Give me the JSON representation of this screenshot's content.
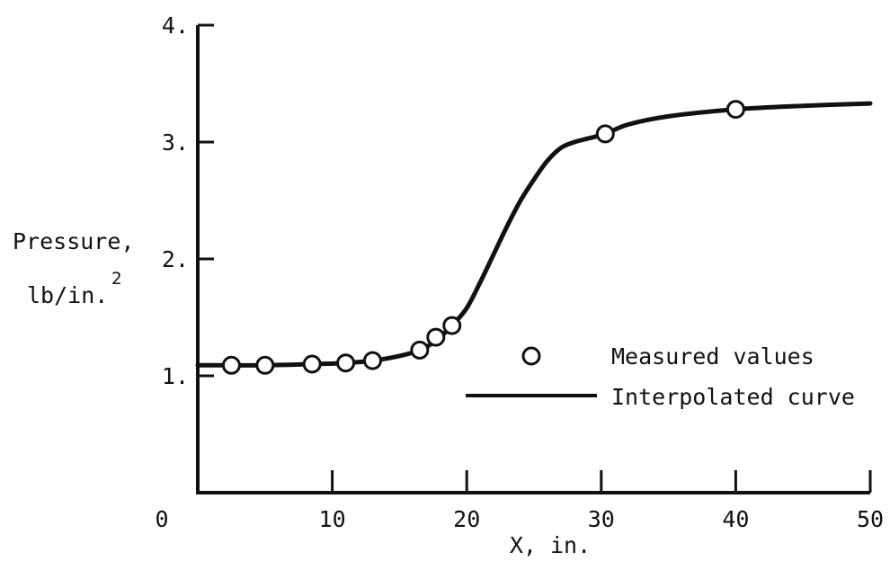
{
  "chart_data": {
    "type": "line",
    "title": "",
    "xlabel": "X, in.",
    "ylabel": [
      "Pressure,",
      "lb/in."
    ],
    "ylabel_superscript": "2",
    "xlim": [
      0,
      50
    ],
    "ylim": [
      0,
      4
    ],
    "grid": false,
    "x_ticks": [
      0,
      10,
      20,
      30,
      40,
      50
    ],
    "x_tick_labels": [
      "0",
      "10",
      "20",
      "30",
      "40",
      "50"
    ],
    "y_ticks": [
      1,
      2,
      3,
      4
    ],
    "y_tick_labels": [
      "1.",
      "2.",
      "3.",
      "4."
    ],
    "legend_position": "right",
    "series": [
      {
        "name": "Measured values",
        "style": "open-circle",
        "x": [
          2.5,
          5,
          8.5,
          11,
          13,
          16.5,
          17.7,
          18.9,
          30.3,
          40
        ],
        "y": [
          1.09,
          1.09,
          1.1,
          1.11,
          1.13,
          1.22,
          1.33,
          1.43,
          3.07,
          3.28
        ]
      },
      {
        "name": "Interpolated curve",
        "style": "line",
        "x": [
          0,
          2.5,
          5,
          8.5,
          11,
          13,
          15,
          16.5,
          17.7,
          18.9,
          20,
          21,
          22,
          23,
          24,
          25,
          26,
          27,
          28,
          29,
          30.3,
          32,
          35,
          40,
          45,
          50
        ],
        "y": [
          1.09,
          1.09,
          1.09,
          1.1,
          1.11,
          1.13,
          1.17,
          1.22,
          1.3,
          1.43,
          1.58,
          1.8,
          2.04,
          2.28,
          2.5,
          2.68,
          2.84,
          2.95,
          3.0,
          3.03,
          3.07,
          3.15,
          3.22,
          3.28,
          3.31,
          3.33
        ]
      }
    ]
  }
}
